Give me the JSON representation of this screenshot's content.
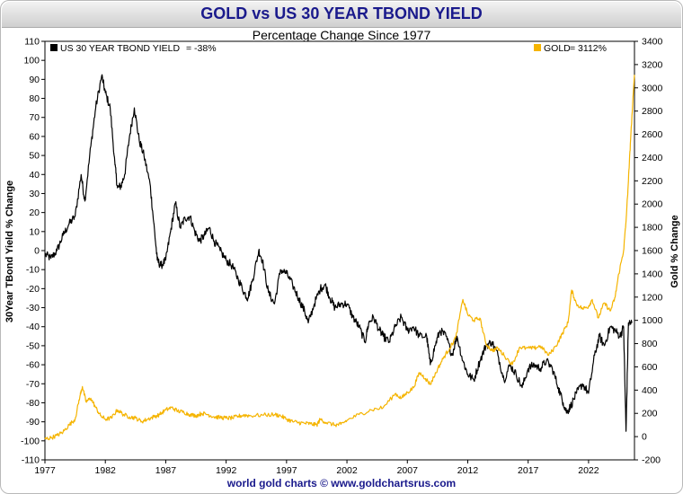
{
  "chart_data": {
    "type": "line",
    "title": "GOLD vs US 30 YEAR TBOND YIELD",
    "subtitle": "Percentage Change Since 1977",
    "footer": "world gold charts © www.goldchartsrus.com",
    "left_axis": {
      "label": "30Year TBond Yield  % Change",
      "range": [
        -110,
        110
      ],
      "ticks": [
        110,
        100,
        90,
        80,
        70,
        60,
        50,
        40,
        30,
        20,
        10,
        0,
        -10,
        -20,
        -30,
        -40,
        -50,
        -60,
        -70,
        -80,
        -90,
        -100,
        -110
      ]
    },
    "right_axis": {
      "label": "Gold  % Change",
      "range": [
        -200,
        3400
      ],
      "ticks": [
        3400,
        3200,
        3000,
        2800,
        2600,
        2400,
        2200,
        2000,
        1800,
        1600,
        1400,
        1200,
        1000,
        800,
        600,
        400,
        200,
        0,
        -200
      ]
    },
    "x_axis": {
      "range": [
        1977,
        2025.8
      ],
      "ticks": [
        "1977",
        "1982",
        "1987",
        "1992",
        "1997",
        "2002",
        "2007",
        "2012",
        "2017",
        "2022"
      ]
    },
    "legend": {
      "tbond": {
        "name": "US 30 YEAR TBOND YIELD",
        "value": "= -38%",
        "position": "top-left"
      },
      "gold": {
        "name": "GOLD",
        "value": "= 3112%",
        "position": "top-right"
      }
    },
    "series": [
      {
        "name": "US 30 YEAR TBOND YIELD",
        "axis": "left",
        "color": "#000000",
        "points": [
          [
            1977.0,
            -2
          ],
          [
            1977.5,
            -4
          ],
          [
            1978.0,
            0
          ],
          [
            1978.5,
            8
          ],
          [
            1979.0,
            14
          ],
          [
            1979.5,
            18
          ],
          [
            1980.0,
            40
          ],
          [
            1980.3,
            26
          ],
          [
            1980.8,
            55
          ],
          [
            1981.2,
            75
          ],
          [
            1981.7,
            92
          ],
          [
            1982.0,
            83
          ],
          [
            1982.4,
            75
          ],
          [
            1982.8,
            45
          ],
          [
            1983.0,
            33
          ],
          [
            1983.3,
            34
          ],
          [
            1983.6,
            40
          ],
          [
            1984.0,
            60
          ],
          [
            1984.4,
            75
          ],
          [
            1984.8,
            58
          ],
          [
            1985.2,
            50
          ],
          [
            1985.7,
            35
          ],
          [
            1986.0,
            15
          ],
          [
            1986.3,
            -5
          ],
          [
            1986.6,
            -8
          ],
          [
            1987.0,
            -5
          ],
          [
            1987.4,
            10
          ],
          [
            1987.8,
            25
          ],
          [
            1988.2,
            12
          ],
          [
            1988.6,
            17
          ],
          [
            1989.0,
            18
          ],
          [
            1989.4,
            10
          ],
          [
            1989.8,
            5
          ],
          [
            1990.2,
            8
          ],
          [
            1990.6,
            12
          ],
          [
            1991.0,
            5
          ],
          [
            1991.5,
            0
          ],
          [
            1992.0,
            -5
          ],
          [
            1992.5,
            -8
          ],
          [
            1993.0,
            -15
          ],
          [
            1993.5,
            -22
          ],
          [
            1993.8,
            -25
          ],
          [
            1994.2,
            -15
          ],
          [
            1994.7,
            0
          ],
          [
            1995.0,
            -5
          ],
          [
            1995.5,
            -22
          ],
          [
            1996.0,
            -28
          ],
          [
            1996.5,
            -10
          ],
          [
            1997.0,
            -12
          ],
          [
            1997.5,
            -18
          ],
          [
            1998.0,
            -25
          ],
          [
            1998.5,
            -32
          ],
          [
            1998.8,
            -38
          ],
          [
            1999.3,
            -28
          ],
          [
            1999.8,
            -20
          ],
          [
            2000.2,
            -18
          ],
          [
            2000.6,
            -25
          ],
          [
            2001.0,
            -30
          ],
          [
            2001.5,
            -28
          ],
          [
            2002.0,
            -28
          ],
          [
            2002.5,
            -35
          ],
          [
            2003.0,
            -40
          ],
          [
            2003.5,
            -48
          ],
          [
            2003.8,
            -38
          ],
          [
            2004.2,
            -35
          ],
          [
            2004.7,
            -42
          ],
          [
            2005.0,
            -45
          ],
          [
            2005.5,
            -48
          ],
          [
            2006.0,
            -40
          ],
          [
            2006.5,
            -35
          ],
          [
            2007.0,
            -42
          ],
          [
            2007.5,
            -40
          ],
          [
            2008.0,
            -45
          ],
          [
            2008.6,
            -45
          ],
          [
            2008.9,
            -60
          ],
          [
            2009.3,
            -50
          ],
          [
            2009.7,
            -42
          ],
          [
            2010.2,
            -45
          ],
          [
            2010.7,
            -55
          ],
          [
            2011.1,
            -45
          ],
          [
            2011.6,
            -58
          ],
          [
            2012.0,
            -65
          ],
          [
            2012.5,
            -68
          ],
          [
            2013.0,
            -58
          ],
          [
            2013.5,
            -50
          ],
          [
            2014.0,
            -48
          ],
          [
            2014.5,
            -55
          ],
          [
            2015.0,
            -68
          ],
          [
            2015.5,
            -60
          ],
          [
            2016.0,
            -65
          ],
          [
            2016.5,
            -72
          ],
          [
            2017.0,
            -62
          ],
          [
            2017.5,
            -60
          ],
          [
            2018.0,
            -62
          ],
          [
            2018.5,
            -58
          ],
          [
            2019.0,
            -62
          ],
          [
            2019.5,
            -72
          ],
          [
            2019.9,
            -80
          ],
          [
            2020.2,
            -85
          ],
          [
            2020.5,
            -82
          ],
          [
            2021.0,
            -75
          ],
          [
            2021.5,
            -70
          ],
          [
            2022.0,
            -75
          ],
          [
            2022.5,
            -55
          ],
          [
            2022.9,
            -45
          ],
          [
            2023.3,
            -50
          ],
          [
            2023.8,
            -40
          ],
          [
            2024.2,
            -42
          ],
          [
            2024.6,
            -45
          ],
          [
            2024.9,
            -40
          ],
          [
            2025.1,
            -95
          ],
          [
            2025.3,
            -38
          ],
          [
            2025.6,
            -38
          ]
        ]
      },
      {
        "name": "GOLD",
        "axis": "right",
        "color": "#f5b400",
        "points": [
          [
            1977.0,
            -20
          ],
          [
            1977.5,
            -10
          ],
          [
            1978.0,
            10
          ],
          [
            1978.5,
            40
          ],
          [
            1979.0,
            100
          ],
          [
            1979.5,
            150
          ],
          [
            1979.9,
            350
          ],
          [
            1980.1,
            430
          ],
          [
            1980.4,
            300
          ],
          [
            1980.8,
            330
          ],
          [
            1981.2,
            250
          ],
          [
            1981.6,
            180
          ],
          [
            1982.0,
            150
          ],
          [
            1982.5,
            160
          ],
          [
            1983.0,
            230
          ],
          [
            1983.5,
            190
          ],
          [
            1984.0,
            170
          ],
          [
            1984.5,
            160
          ],
          [
            1985.0,
            130
          ],
          [
            1985.5,
            150
          ],
          [
            1986.0,
            170
          ],
          [
            1986.5,
            190
          ],
          [
            1987.0,
            230
          ],
          [
            1987.5,
            250
          ],
          [
            1988.0,
            220
          ],
          [
            1988.5,
            210
          ],
          [
            1989.0,
            190
          ],
          [
            1989.5,
            180
          ],
          [
            1990.0,
            200
          ],
          [
            1990.5,
            190
          ],
          [
            1991.0,
            170
          ],
          [
            1991.5,
            165
          ],
          [
            1992.0,
            160
          ],
          [
            1992.5,
            160
          ],
          [
            1993.0,
            175
          ],
          [
            1993.5,
            185
          ],
          [
            1994.0,
            180
          ],
          [
            1995.0,
            185
          ],
          [
            1996.0,
            190
          ],
          [
            1996.5,
            180
          ],
          [
            1997.0,
            150
          ],
          [
            1997.5,
            130
          ],
          [
            1998.0,
            120
          ],
          [
            1998.5,
            115
          ],
          [
            1999.0,
            110
          ],
          [
            1999.5,
            100
          ],
          [
            1999.8,
            150
          ],
          [
            2000.3,
            120
          ],
          [
            2001.0,
            100
          ],
          [
            2001.5,
            105
          ],
          [
            2002.0,
            140
          ],
          [
            2003.0,
            190
          ],
          [
            2004.0,
            230
          ],
          [
            2005.0,
            250
          ],
          [
            2006.0,
            370
          ],
          [
            2006.5,
            330
          ],
          [
            2007.0,
            380
          ],
          [
            2007.5,
            420
          ],
          [
            2008.0,
            550
          ],
          [
            2008.5,
            500
          ],
          [
            2008.9,
            450
          ],
          [
            2009.5,
            580
          ],
          [
            2010.0,
            680
          ],
          [
            2010.5,
            760
          ],
          [
            2011.0,
            850
          ],
          [
            2011.6,
            1180
          ],
          [
            2012.0,
            1050
          ],
          [
            2012.5,
            1000
          ],
          [
            2013.0,
            1020
          ],
          [
            2013.5,
            800
          ],
          [
            2014.0,
            740
          ],
          [
            2014.5,
            760
          ],
          [
            2015.0,
            700
          ],
          [
            2015.7,
            620
          ],
          [
            2016.3,
            770
          ],
          [
            2016.8,
            760
          ],
          [
            2017.5,
            760
          ],
          [
            2018.0,
            780
          ],
          [
            2018.7,
            700
          ],
          [
            2019.3,
            780
          ],
          [
            2019.8,
            880
          ],
          [
            2020.3,
            980
          ],
          [
            2020.6,
            1260
          ],
          [
            2021.0,
            1140
          ],
          [
            2021.5,
            1100
          ],
          [
            2022.0,
            1120
          ],
          [
            2022.3,
            1180
          ],
          [
            2022.8,
            1020
          ],
          [
            2023.3,
            1150
          ],
          [
            2023.8,
            1080
          ],
          [
            2024.2,
            1200
          ],
          [
            2024.5,
            1400
          ],
          [
            2024.9,
            1600
          ],
          [
            2025.1,
            1850
          ],
          [
            2025.3,
            2200
          ],
          [
            2025.5,
            2600
          ],
          [
            2025.8,
            3112
          ]
        ]
      }
    ]
  }
}
